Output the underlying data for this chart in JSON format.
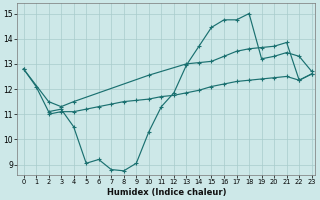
{
  "xlabel": "Humidex (Indice chaleur)",
  "xlim_min": -0.5,
  "xlim_max": 23.3,
  "ylim_min": 8.6,
  "ylim_max": 15.4,
  "yticks": [
    9,
    10,
    11,
    12,
    13,
    14,
    15
  ],
  "xticks": [
    0,
    1,
    2,
    3,
    4,
    5,
    6,
    7,
    8,
    9,
    10,
    11,
    12,
    13,
    14,
    15,
    16,
    17,
    18,
    19,
    20,
    21,
    22,
    23
  ],
  "bg_color": "#cde8e8",
  "grid_color": "#a8cccc",
  "line_color": "#1a7070",
  "line1_x": [
    0,
    1,
    2,
    3,
    4,
    5,
    6,
    7,
    8,
    9,
    10,
    11,
    12,
    13,
    14,
    15,
    16,
    17,
    18,
    19,
    20,
    21,
    22,
    23
  ],
  "line1_y": [
    12.8,
    12.1,
    11.1,
    11.2,
    10.5,
    9.05,
    9.2,
    8.8,
    8.75,
    9.05,
    10.3,
    11.3,
    11.85,
    12.95,
    13.7,
    14.45,
    14.75,
    14.75,
    15.0,
    13.2,
    13.3,
    13.45,
    13.3,
    12.7
  ],
  "line2_x": [
    0,
    2,
    3,
    4,
    10,
    13,
    14,
    15,
    16,
    17,
    18,
    19,
    20,
    21,
    22,
    23
  ],
  "line2_y": [
    12.8,
    11.5,
    11.3,
    11.5,
    12.55,
    13.0,
    13.05,
    13.1,
    13.3,
    13.5,
    13.6,
    13.65,
    13.7,
    13.85,
    12.35,
    12.6
  ],
  "line3_x": [
    2,
    3,
    4,
    5,
    6,
    7,
    8,
    9,
    10,
    11,
    12,
    13,
    14,
    15,
    16,
    17,
    18,
    19,
    20,
    21,
    22,
    23
  ],
  "line3_y": [
    11.0,
    11.1,
    11.1,
    11.2,
    11.3,
    11.4,
    11.5,
    11.55,
    11.6,
    11.7,
    11.75,
    11.85,
    11.95,
    12.1,
    12.2,
    12.3,
    12.35,
    12.4,
    12.45,
    12.5,
    12.35,
    12.6
  ]
}
